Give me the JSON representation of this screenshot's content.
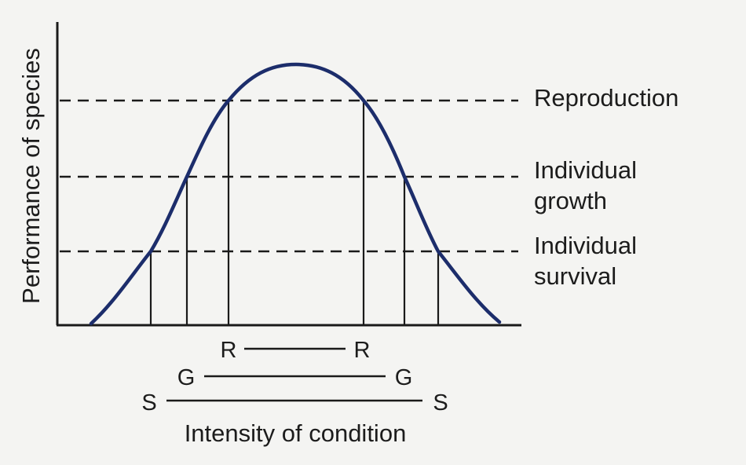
{
  "diagram": {
    "y_axis_label": "Performance of species",
    "x_axis_label": "Intensity of condition",
    "levels": [
      {
        "name": "reproduction",
        "label_lines": [
          "Reproduction"
        ]
      },
      {
        "name": "growth",
        "label_lines": [
          "Individual",
          "growth"
        ]
      },
      {
        "name": "survival",
        "label_lines": [
          "Individual",
          "survival"
        ]
      }
    ],
    "ranges": [
      {
        "name": "reproduction",
        "left": "R",
        "right": "R"
      },
      {
        "name": "growth",
        "left": "G",
        "right": "G"
      },
      {
        "name": "survival",
        "left": "S",
        "right": "S"
      }
    ],
    "colors": {
      "curve": "#1c2d6b",
      "ink": "#1a1a1a",
      "background": "#f4f4f2"
    }
  }
}
